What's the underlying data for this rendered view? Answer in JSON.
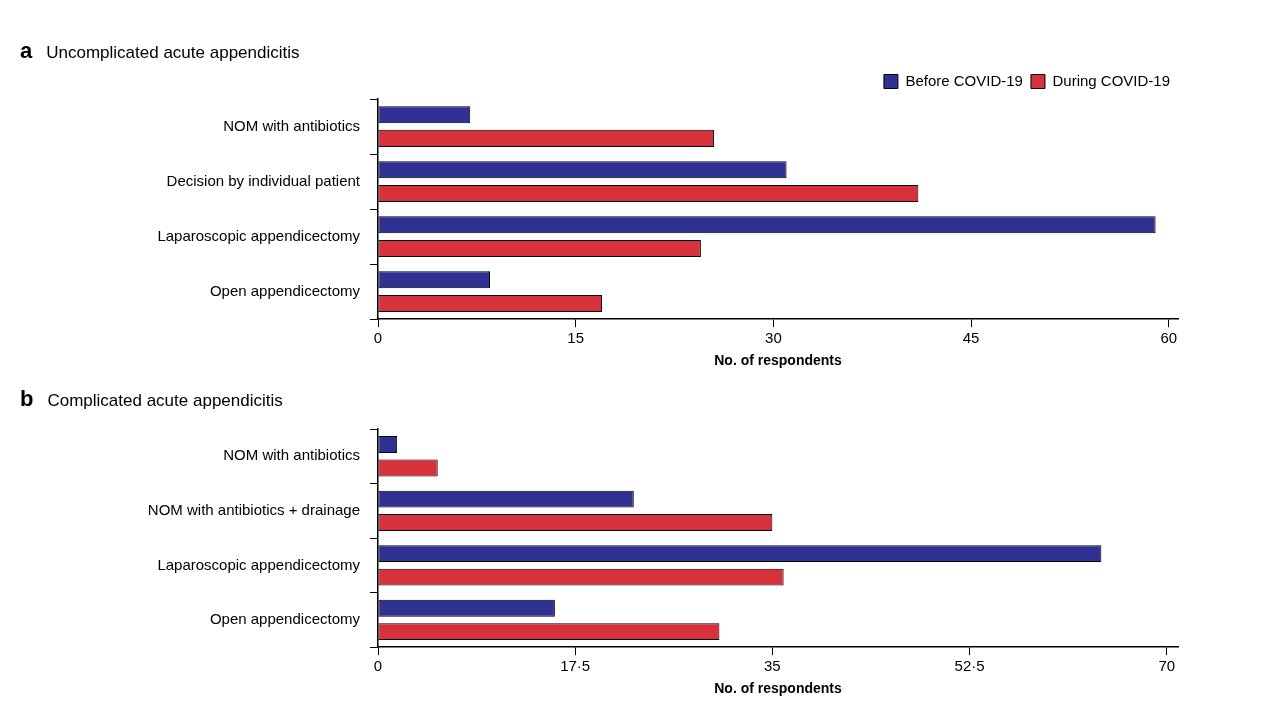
{
  "chart_data": [
    {
      "type": "bar",
      "orientation": "horizontal",
      "title": "Uncomplicated acute appendicitis",
      "annotations": [
        "a"
      ],
      "xlabel": "No. of respondents",
      "categories": [
        "NOM with antibiotics",
        "Decision by individual patient",
        "Laparoscopic appendicectomy",
        "Open appendicectomy"
      ],
      "series": [
        {
          "name": "Before COVID-19",
          "color": "#2e3192",
          "values": [
            7,
            31,
            59,
            8.5
          ]
        },
        {
          "name": "During COVID-19",
          "color": "#d7323c",
          "values": [
            25.5,
            41,
            24.5,
            17
          ]
        }
      ],
      "xlim": [
        0,
        60.7
      ],
      "xticks": [
        0,
        15,
        30,
        45,
        60
      ],
      "legend": "top right",
      "grid": false
    },
    {
      "type": "bar",
      "orientation": "horizontal",
      "title": "Complicated acute appendicitis",
      "annotations": [
        "b"
      ],
      "xlabel": "No. of respondents",
      "categories": [
        "NOM with antibiotics",
        "NOM with antibiotics + drainage",
        "Laparoscopic appendicectomy",
        "Open appendicectomy"
      ],
      "series": [
        {
          "color": "#2e3192",
          "values": [
            1.7,
            22.7,
            64.2,
            15.7
          ]
        },
        {
          "color": "#d7323c",
          "values": [
            5.3,
            35,
            36,
            30.3
          ]
        }
      ],
      "xlim": [
        0,
        71
      ],
      "xticks": [
        0,
        {
          "value": 17.5,
          "label": "17·5"
        },
        35,
        {
          "value": 52.5,
          "label": "52·5"
        },
        70
      ],
      "legend": false,
      "grid": false
    }
  ]
}
